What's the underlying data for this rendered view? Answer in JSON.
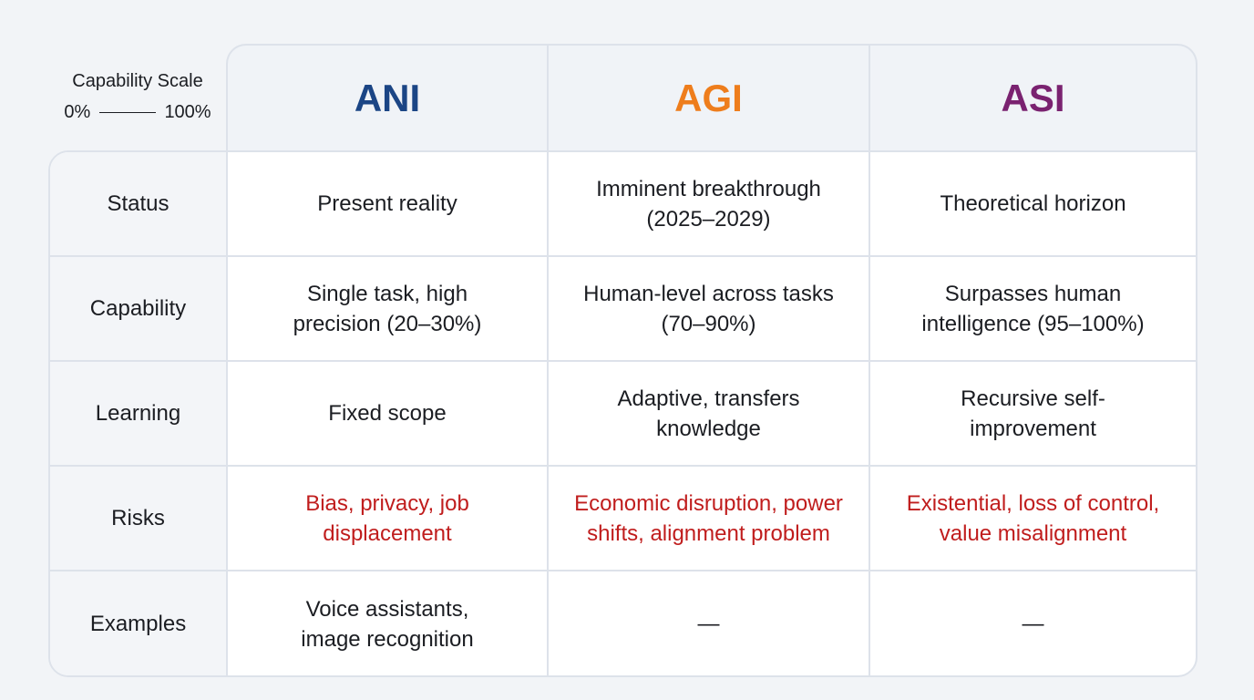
{
  "scale": {
    "title": "Capability Scale",
    "min": "0%",
    "max": "100%"
  },
  "columns": [
    {
      "label": "ANI",
      "color": "#1b4585"
    },
    {
      "label": "AGI",
      "color": "#ee7d1c"
    },
    {
      "label": "ASI",
      "color": "#7a2270"
    }
  ],
  "rows": [
    {
      "label": "Status",
      "cells": [
        "Present reality",
        "Imminent breakthrough\n(2025–2029)",
        "Theoretical horizon"
      ]
    },
    {
      "label": "Capability",
      "cells": [
        "Single task, high\nprecision (20–30%)",
        "Human-level across tasks\n(70–90%)",
        "Surpasses human\nintelligence (95–100%)"
      ]
    },
    {
      "label": "Learning",
      "cells": [
        "Fixed scope",
        "Adaptive, transfers\nknowledge",
        "Recursive self-\nimprovement"
      ]
    },
    {
      "label": "Risks",
      "risk": true,
      "cells": [
        "Bias, privacy, job\ndisplacement",
        "Economic disruption, power\nshifts, alignment problem",
        "Existential, loss of control,\nvalue misalignment"
      ]
    },
    {
      "label": "Examples",
      "cells": [
        "Voice assistants,\nimage recognition",
        "—",
        "—"
      ]
    }
  ],
  "colors": {
    "risk": "#c01d1d"
  }
}
